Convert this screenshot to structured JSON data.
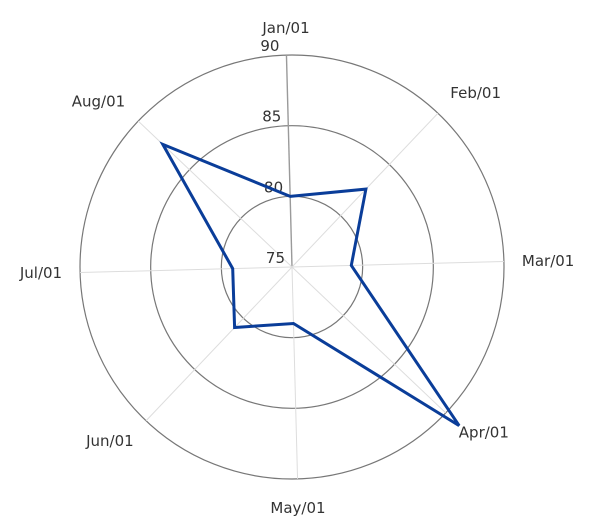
{
  "chart_data": {
    "type": "radar",
    "categories": [
      "Jan/01",
      "Feb/01",
      "Mar/01",
      "Apr/01",
      "May/01",
      "Jun/01",
      "Jul/01",
      "Aug/01"
    ],
    "series": [
      {
        "values": [
          80,
          82.6,
          79.2,
          91.3,
          79,
          80.9,
          79.2,
          87.6
        ]
      }
    ],
    "rlim": [
      75,
      90
    ],
    "ticks": [
      75,
      80,
      85,
      90
    ],
    "grid": true,
    "colors": {
      "series": "#0a3d99",
      "grid": "#777777",
      "spoke": "#dddddd",
      "axis": "#9a9a9a"
    }
  }
}
